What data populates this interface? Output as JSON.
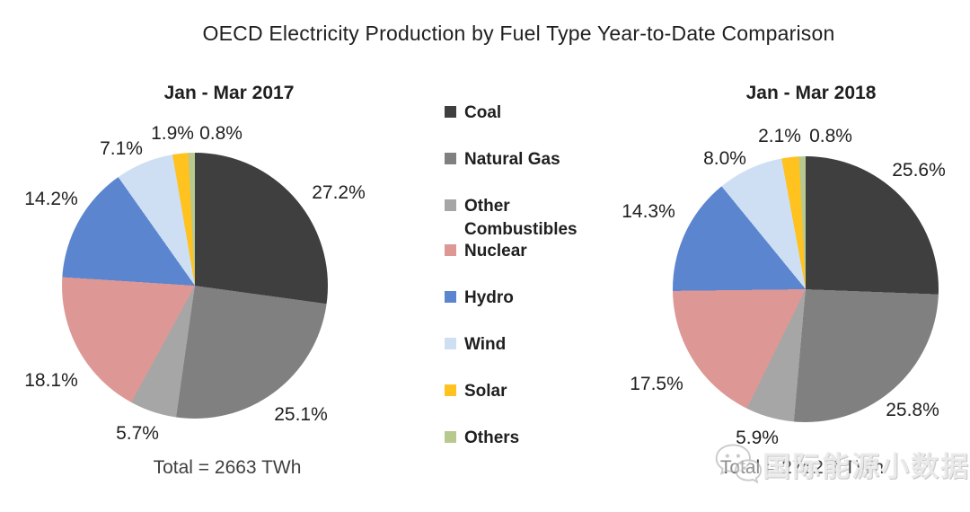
{
  "title": "OECD Electricity Production by Fuel Type Year-to-Date Comparison",
  "watermark": {
    "icon": "wechat-icon",
    "text": "国际能源小数据"
  },
  "chart_data": [
    {
      "type": "pie",
      "title": "Jan - Mar 2017",
      "total_label": "Total = 2663 TWh",
      "total_value_twh": 2663,
      "unit": "percent",
      "direction": "clockwise",
      "start_angle_deg": 0,
      "legend_position": "center-between-pies",
      "categories": [
        "Coal",
        "Natural Gas",
        "Other Combustibles",
        "Nuclear",
        "Hydro",
        "Wind",
        "Solar",
        "Others"
      ],
      "values": [
        27.2,
        25.1,
        5.7,
        18.1,
        14.2,
        7.1,
        1.9,
        0.8
      ],
      "colors": [
        "#3F3F3F",
        "#808080",
        "#A6A6A6",
        "#DD9895",
        "#5B85CE",
        "#CEDFF4",
        "#FFC21E",
        "#B8C98F"
      ]
    },
    {
      "type": "pie",
      "title": "Jan - Mar 2018",
      "total_label": "Total = 2752.3 TWh",
      "total_value_twh": 2752.3,
      "unit": "percent",
      "direction": "clockwise",
      "start_angle_deg": 0,
      "categories": [
        "Coal",
        "Natural Gas",
        "Other Combustibles",
        "Nuclear",
        "Hydro",
        "Wind",
        "Solar",
        "Others"
      ],
      "values": [
        25.6,
        25.8,
        5.9,
        17.5,
        14.3,
        8.0,
        2.1,
        0.8
      ],
      "colors": [
        "#3F3F3F",
        "#808080",
        "#A6A6A6",
        "#DD9895",
        "#5B85CE",
        "#CEDFF4",
        "#FFC21E",
        "#B8C98F"
      ]
    }
  ]
}
